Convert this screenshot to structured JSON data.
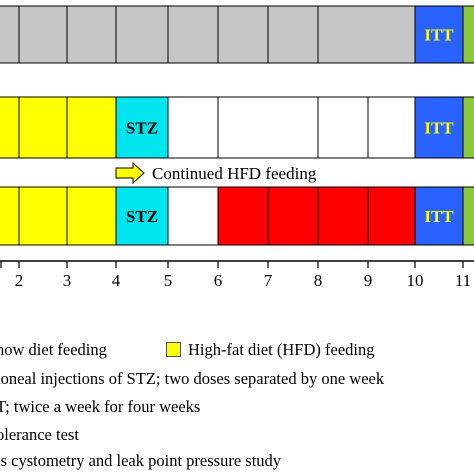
{
  "timeline": {
    "rows": [
      {
        "name": "row-chow",
        "cells": [
          {
            "fill": "#c6c6c6",
            "label": ""
          },
          {
            "fill": "#c6c6c6",
            "label": ""
          },
          {
            "fill": "#c6c6c6",
            "label": ""
          },
          {
            "fill": "#c6c6c6",
            "label": ""
          },
          {
            "fill": "#c6c6c6",
            "label": ""
          },
          {
            "fill": "#c6c6c6",
            "label": ""
          },
          {
            "fill": "#c6c6c6",
            "label": ""
          },
          {
            "fill": "#c6c6c6",
            "label": ""
          },
          {
            "fill": "#2962ff",
            "label": "ITT",
            "text_color": "#ffff00"
          }
        ]
      },
      {
        "name": "row-hfd",
        "cells": [
          {
            "fill": "#ffff00",
            "label": ""
          },
          {
            "fill": "#ffff00",
            "label": ""
          },
          {
            "fill": "#ffff00",
            "label": ""
          },
          {
            "fill": "#00e5ee",
            "label": "STZ",
            "text_color": "#000000"
          },
          {
            "fill": "#ffffff",
            "label": ""
          },
          {
            "fill": "#ffffff",
            "label": ""
          },
          {
            "fill": "#ffffff",
            "label": ""
          },
          {
            "fill": "#ffffff",
            "label": ""
          },
          {
            "fill": "#2962ff",
            "label": "ITT",
            "text_color": "#ffff00"
          }
        ]
      },
      {
        "name": "row-hfd-stz",
        "cells": [
          {
            "fill": "#ffff00",
            "label": ""
          },
          {
            "fill": "#ffff00",
            "label": ""
          },
          {
            "fill": "#ffff00",
            "label": ""
          },
          {
            "fill": "#00e5ee",
            "label": "STZ",
            "text_color": "#000000"
          },
          {
            "fill": "#ffffff",
            "label": ""
          },
          {
            "fill": "#ff0000",
            "label": ""
          },
          {
            "fill": "#ff0000",
            "label": ""
          },
          {
            "fill": "#ff0000",
            "label": ""
          },
          {
            "fill": "#ff0000",
            "label": ""
          },
          {
            "fill": "#2962ff",
            "label": "ITT",
            "text_color": "#ffff00"
          }
        ]
      }
    ],
    "tail_color": "#8dc63f",
    "arrow": {
      "label": "Continued HFD feeding",
      "color": "#ffff00"
    },
    "axis_ticks": [
      "2",
      "3",
      "4",
      "5",
      "6",
      "7",
      "8",
      "9",
      "10",
      "11"
    ]
  },
  "legend": {
    "lines": [
      "how diet feeding",
      "toneal injections of STZ; two doses separated by one week",
      "T; twice a week for four weeks",
      "olerance test",
      "is cystometry and leak point pressure study"
    ],
    "hfd_label": "High-fat diet (HFD) feeding",
    "hfd_swatch_color": "#ffff00"
  }
}
